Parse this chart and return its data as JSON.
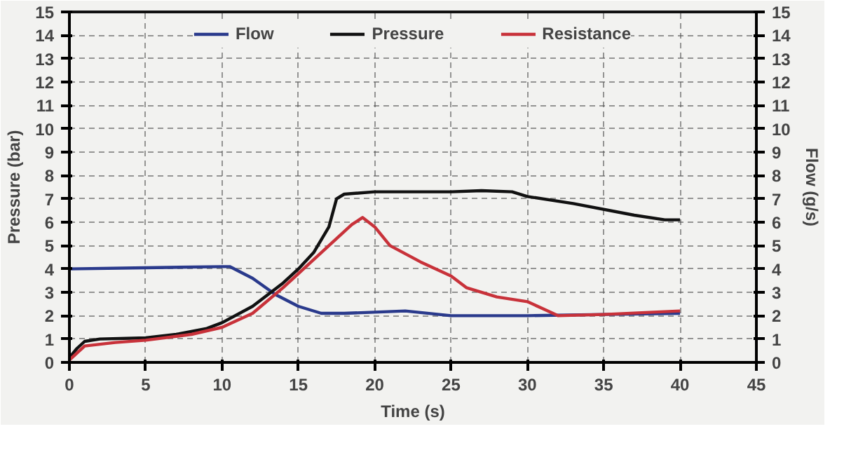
{
  "chart_data": {
    "type": "line",
    "xlabel": "Time (s)",
    "ylabel": "Pressure (bar)",
    "y2label": "Flow (g/s)",
    "xlim": [
      0,
      45
    ],
    "xticks": [
      0,
      5,
      10,
      15,
      20,
      25,
      30,
      35,
      40,
      45
    ],
    "ylim": [
      0,
      15
    ],
    "yticks": [
      0,
      1,
      2,
      3,
      4,
      5,
      6,
      7,
      8,
      9,
      10,
      11,
      12,
      13,
      14,
      15
    ],
    "y2lim": [
      0,
      15
    ],
    "y2ticks": [
      0,
      1,
      2,
      3,
      4,
      5,
      6,
      7,
      8,
      9,
      10,
      11,
      12,
      13,
      14,
      15
    ],
    "grid": true,
    "legend": "top",
    "line_style": "solid",
    "series": [
      {
        "name": "Flow",
        "color": "#2a3a8c",
        "x": [
          0,
          5,
          10,
          10.5,
          12,
          13.5,
          15,
          16.5,
          18,
          20,
          22,
          25,
          30,
          35,
          40
        ],
        "values": [
          4.0,
          4.05,
          4.1,
          4.1,
          3.6,
          2.9,
          2.4,
          2.1,
          2.1,
          2.15,
          2.2,
          2.0,
          2.0,
          2.05,
          2.1
        ]
      },
      {
        "name": "Pressure",
        "color": "#111111",
        "x": [
          0,
          0.5,
          1,
          2,
          5,
          7,
          9,
          10,
          12,
          14,
          15,
          16,
          17,
          17.5,
          18,
          20,
          25,
          27,
          29,
          30,
          33,
          37,
          39,
          40
        ],
        "values": [
          0.2,
          0.6,
          0.9,
          1.0,
          1.05,
          1.2,
          1.45,
          1.7,
          2.4,
          3.4,
          4.0,
          4.7,
          5.8,
          7.0,
          7.2,
          7.3,
          7.3,
          7.35,
          7.3,
          7.1,
          6.8,
          6.3,
          6.1,
          6.1
        ]
      },
      {
        "name": "Resistance",
        "color": "#c8323a",
        "x": [
          0,
          1,
          3,
          5,
          8,
          10,
          12,
          14,
          15,
          17,
          18.5,
          19.2,
          20,
          21,
          23,
          25,
          26,
          28,
          30,
          31,
          32,
          35,
          40
        ],
        "values": [
          0.1,
          0.7,
          0.85,
          0.95,
          1.2,
          1.5,
          2.1,
          3.2,
          3.8,
          5.0,
          5.9,
          6.2,
          5.8,
          5.0,
          4.3,
          3.7,
          3.2,
          2.8,
          2.6,
          2.3,
          2.0,
          2.05,
          2.2
        ]
      }
    ]
  }
}
